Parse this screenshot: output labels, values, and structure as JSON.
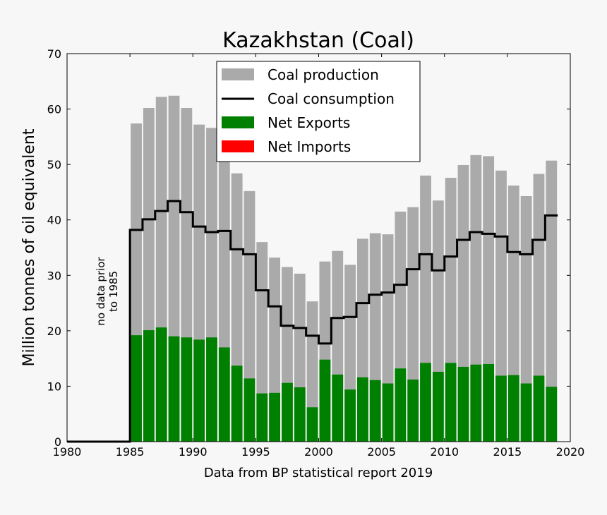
{
  "chart_data": {
    "type": "bar",
    "title": "Kazakhstan (Coal)",
    "xlabel": "Data from BP statistical report 2019",
    "ylabel": "Million tonnes of oil equivalent",
    "xlim": [
      1980,
      2020
    ],
    "ylim": [
      0,
      70
    ],
    "x_ticks": [
      1980,
      1985,
      1990,
      1995,
      2000,
      2005,
      2010,
      2015,
      2020
    ],
    "y_ticks": [
      0,
      10,
      20,
      30,
      40,
      50,
      60,
      70
    ],
    "grid": false,
    "legend_position": "top-center",
    "annotation": [
      "no data prior",
      "to 1985"
    ],
    "legend": [
      {
        "label": "Coal production",
        "color": "#aaaaaa",
        "kind": "patch"
      },
      {
        "label": "Coal consumption",
        "color": "#000000",
        "kind": "line"
      },
      {
        "label": "Net Exports",
        "color": "#008000",
        "kind": "patch"
      },
      {
        "label": "Net Imports",
        "color": "#ff0000",
        "kind": "patch"
      }
    ],
    "years": [
      1985,
      1986,
      1987,
      1988,
      1989,
      1990,
      1991,
      1992,
      1993,
      1994,
      1995,
      1996,
      1997,
      1998,
      1999,
      2000,
      2001,
      2002,
      2003,
      2004,
      2005,
      2006,
      2007,
      2008,
      2009,
      2010,
      2011,
      2012,
      2013,
      2014,
      2015,
      2016,
      2017,
      2018
    ],
    "series": [
      {
        "name": "Coal production",
        "color": "#aaaaaa",
        "values": [
          57.4,
          60.2,
          62.2,
          62.4,
          60.2,
          57.2,
          56.6,
          55.0,
          48.4,
          45.2,
          36.0,
          33.2,
          31.5,
          30.3,
          25.3,
          32.5,
          34.4,
          31.9,
          36.6,
          37.6,
          37.4,
          41.5,
          42.3,
          48.0,
          43.5,
          47.6,
          49.9,
          51.7,
          51.5,
          48.9,
          46.2,
          44.3,
          48.3,
          50.7
        ]
      },
      {
        "name": "Coal consumption",
        "color": "#000000",
        "values": [
          38.2,
          40.1,
          41.6,
          43.4,
          41.4,
          38.8,
          37.8,
          38.0,
          34.7,
          33.8,
          27.3,
          24.4,
          20.9,
          20.5,
          19.1,
          17.7,
          22.3,
          22.5,
          25.0,
          26.5,
          26.9,
          28.3,
          31.1,
          33.8,
          30.9,
          33.4,
          36.4,
          37.8,
          37.5,
          37.0,
          34.2,
          33.8,
          36.4,
          40.8
        ]
      },
      {
        "name": "Net Exports",
        "color": "#008000",
        "values": [
          19.2,
          20.1,
          20.6,
          19.0,
          18.8,
          18.4,
          18.8,
          17.0,
          13.7,
          11.4,
          8.7,
          8.8,
          10.6,
          9.8,
          6.2,
          14.8,
          12.1,
          9.4,
          11.6,
          11.1,
          10.5,
          13.2,
          11.2,
          14.2,
          12.6,
          14.2,
          13.5,
          13.9,
          14.0,
          11.9,
          12.0,
          10.5,
          11.9,
          9.9
        ]
      },
      {
        "name": "Net Imports",
        "color": "#ff0000",
        "values": [
          0,
          0,
          0,
          0,
          0,
          0,
          0,
          0,
          0,
          0,
          0,
          0,
          0,
          0,
          0,
          0,
          0,
          0,
          0,
          0,
          0,
          0,
          0,
          0,
          0,
          0,
          0,
          0,
          0,
          0,
          0,
          0,
          0,
          0
        ]
      }
    ]
  }
}
